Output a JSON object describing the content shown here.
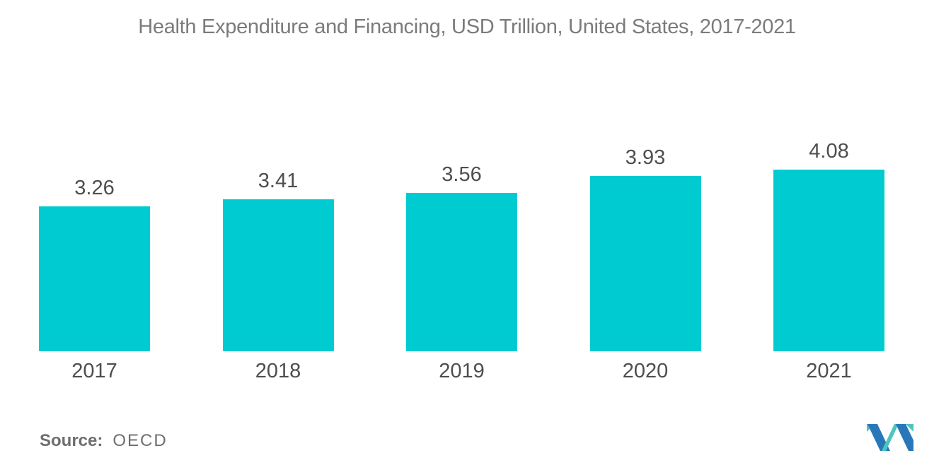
{
  "header": {
    "title": "Health Expenditure and Financing, USD Trillion, United States, 2017-2021"
  },
  "chart_data": {
    "type": "bar",
    "title": "Health Expenditure and Financing, USD Trillion, United States, 2017-2021",
    "categories": [
      "2017",
      "2018",
      "2019",
      "2020",
      "2021"
    ],
    "values": [
      3.26,
      3.41,
      3.56,
      3.93,
      4.08
    ],
    "value_labels": [
      "3.26",
      "3.41",
      "3.56",
      "3.93",
      "4.08"
    ],
    "xlabel": "",
    "ylabel": "",
    "ylim": [
      0,
      4.5
    ],
    "grid": false,
    "legend": "none",
    "bar_color": "#00CBD1",
    "label_color": "#4e4e4e",
    "title_color": "#7b7b7b"
  },
  "footer": {
    "source_label": "Source:",
    "source_value": "OECD"
  },
  "logo": {
    "name": "mordor-intelligence-logo",
    "blue": "#2878B9",
    "teal": "#4EC5BC"
  }
}
